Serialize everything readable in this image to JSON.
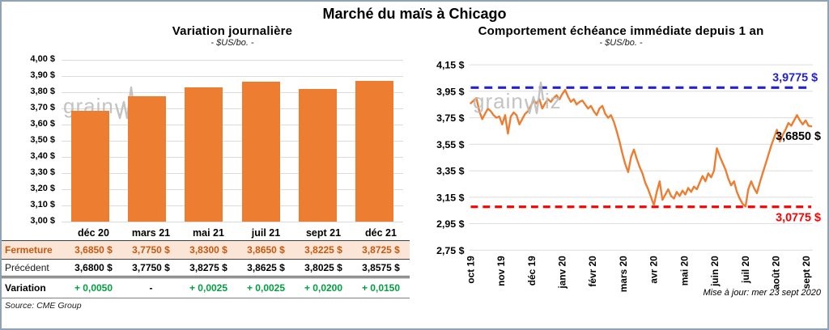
{
  "page": {
    "title": "Marché du maïs à Chicago",
    "updated": "Mise à jour: mer 23 sept 2020",
    "source": "Source: CME Group",
    "watermark": "grainwiz"
  },
  "colors": {
    "orange": "#ED7D31",
    "close_bg": "#FBE5D6",
    "close_text": "#C55A11",
    "green": "#00A040",
    "blue": "#2323CC",
    "red": "#FF0000",
    "grid": "#DCDCDC",
    "watermark": "#BDBDBD"
  },
  "table": {
    "col_headers": [
      "déc 20",
      "mars 21",
      "mai 21",
      "juil 21",
      "sept 21",
      "déc 21"
    ],
    "rows": [
      {
        "label": "Fermeture",
        "values": [
          "3,6850 $",
          "3,7750 $",
          "3,8300 $",
          "3,8650 $",
          "3,8225 $",
          "3,8725 $"
        ]
      },
      {
        "label": "Précédent",
        "values": [
          "3,6800 $",
          "3,7750 $",
          "3,8275 $",
          "3,8625 $",
          "3,8025 $",
          "3,8575 $"
        ]
      },
      {
        "label": "Variation",
        "values": [
          "+ 0,0050",
          "-",
          "+ 0,0025",
          "+ 0,0025",
          "+ 0,0200",
          "+ 0,0150"
        ]
      }
    ]
  },
  "chart_data": [
    {
      "type": "bar",
      "title": "Variation journalière",
      "subtitle": "- $US/bo. -",
      "categories": [
        "déc 20",
        "mars 21",
        "mai 21",
        "juil 21",
        "sept 21",
        "déc 21"
      ],
      "values": [
        3.685,
        3.775,
        3.83,
        3.865,
        3.8225,
        3.8725
      ],
      "ylim": [
        3.0,
        4.0
      ],
      "grid": true,
      "yticks": [
        {
          "label": "4,00 $",
          "value": 4.0
        },
        {
          "label": "3,90 $",
          "value": 3.9
        },
        {
          "label": "3,80 $",
          "value": 3.8
        },
        {
          "label": "3,70 $",
          "value": 3.7
        },
        {
          "label": "3,60 $",
          "value": 3.6
        },
        {
          "label": "3,50 $",
          "value": 3.5
        },
        {
          "label": "3,40 $",
          "value": 3.4
        },
        {
          "label": "3,30 $",
          "value": 3.3
        },
        {
          "label": "3,20 $",
          "value": 3.2
        },
        {
          "label": "3,10 $",
          "value": 3.1
        },
        {
          "label": "3,00 $",
          "value": 3.0
        }
      ]
    },
    {
      "type": "line",
      "title": "Comportement échéance immédiate depuis 1 an",
      "subtitle": "- $US/bo. -",
      "x_labels": [
        "oct 19",
        "nov 19",
        "déc 19",
        "janv 20",
        "févr 20",
        "mars 20",
        "avr 20",
        "mai 20",
        "juin 20",
        "juil 20",
        "août 20",
        "sept 20"
      ],
      "ylim": [
        2.75,
        4.15
      ],
      "grid": true,
      "yticks": [
        {
          "label": "4,15 $",
          "value": 4.15
        },
        {
          "label": "3,95 $",
          "value": 3.95
        },
        {
          "label": "3,75 $",
          "value": 3.75
        },
        {
          "label": "3,55 $",
          "value": 3.55
        },
        {
          "label": "3,35 $",
          "value": 3.35
        },
        {
          "label": "3,15 $",
          "value": 3.15
        },
        {
          "label": "2,95 $",
          "value": 2.95
        },
        {
          "label": "2,75 $",
          "value": 2.75
        }
      ],
      "resistance": {
        "value": 3.9775,
        "label": "3,9775 $"
      },
      "support": {
        "value": 3.0775,
        "label": "3,0775 $"
      },
      "last": {
        "value": 3.685,
        "label": "3,6850 $"
      },
      "series": [
        3.86,
        3.88,
        3.9,
        3.8,
        3.74,
        3.78,
        3.82,
        3.8,
        3.77,
        3.75,
        3.76,
        3.7,
        3.77,
        3.63,
        3.76,
        3.79,
        3.77,
        3.7,
        3.74,
        3.78,
        3.8,
        3.84,
        3.88,
        3.86,
        3.89,
        3.82,
        3.86,
        3.89,
        3.87,
        3.9,
        3.92,
        3.89,
        3.93,
        3.96,
        3.91,
        3.87,
        3.89,
        3.85,
        3.87,
        3.88,
        3.85,
        3.82,
        3.84,
        3.8,
        3.77,
        3.82,
        3.84,
        3.78,
        3.75,
        3.77,
        3.72,
        3.65,
        3.57,
        3.48,
        3.4,
        3.34,
        3.45,
        3.51,
        3.44,
        3.38,
        3.33,
        3.26,
        3.21,
        3.15,
        3.09,
        3.19,
        3.27,
        3.13,
        3.17,
        3.21,
        3.16,
        3.14,
        3.19,
        3.16,
        3.2,
        3.17,
        3.22,
        3.19,
        3.23,
        3.21,
        3.26,
        3.31,
        3.27,
        3.33,
        3.3,
        3.35,
        3.52,
        3.46,
        3.41,
        3.36,
        3.29,
        3.24,
        3.27,
        3.19,
        3.14,
        3.1,
        3.08,
        3.21,
        3.27,
        3.22,
        3.18,
        3.26,
        3.33,
        3.4,
        3.47,
        3.54,
        3.6,
        3.66,
        3.57,
        3.62,
        3.66,
        3.71,
        3.69,
        3.73,
        3.77,
        3.73,
        3.7,
        3.73,
        3.69,
        3.685
      ]
    }
  ]
}
